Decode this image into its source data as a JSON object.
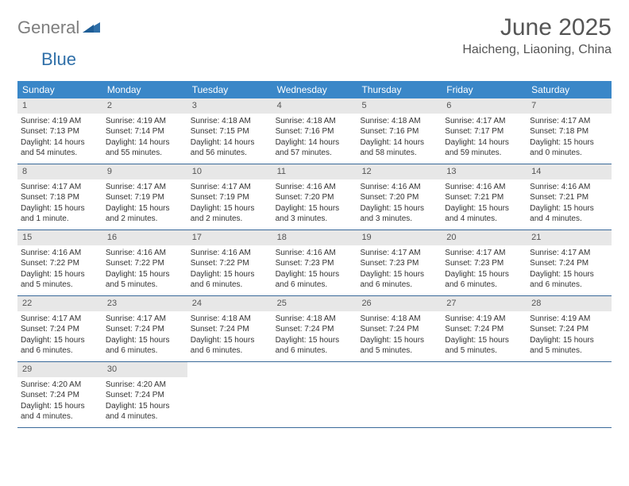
{
  "logo": {
    "gray": "General",
    "blue": "Blue"
  },
  "title": "June 2025",
  "location": "Haicheng, Liaoning, China",
  "colors": {
    "header_bg": "#3a87c8",
    "header_text": "#ffffff",
    "day_num_bg": "#e7e7e7",
    "week_border": "#3a6a9a",
    "logo_gray": "#7e7e7e",
    "logo_blue": "#2f6fa8"
  },
  "dayNames": [
    "Sunday",
    "Monday",
    "Tuesday",
    "Wednesday",
    "Thursday",
    "Friday",
    "Saturday"
  ],
  "weeks": [
    [
      {
        "n": "1",
        "sr": "4:19 AM",
        "ss": "7:13 PM",
        "dl": "14 hours and 54 minutes."
      },
      {
        "n": "2",
        "sr": "4:19 AM",
        "ss": "7:14 PM",
        "dl": "14 hours and 55 minutes."
      },
      {
        "n": "3",
        "sr": "4:18 AM",
        "ss": "7:15 PM",
        "dl": "14 hours and 56 minutes."
      },
      {
        "n": "4",
        "sr": "4:18 AM",
        "ss": "7:16 PM",
        "dl": "14 hours and 57 minutes."
      },
      {
        "n": "5",
        "sr": "4:18 AM",
        "ss": "7:16 PM",
        "dl": "14 hours and 58 minutes."
      },
      {
        "n": "6",
        "sr": "4:17 AM",
        "ss": "7:17 PM",
        "dl": "14 hours and 59 minutes."
      },
      {
        "n": "7",
        "sr": "4:17 AM",
        "ss": "7:18 PM",
        "dl": "15 hours and 0 minutes."
      }
    ],
    [
      {
        "n": "8",
        "sr": "4:17 AM",
        "ss": "7:18 PM",
        "dl": "15 hours and 1 minute."
      },
      {
        "n": "9",
        "sr": "4:17 AM",
        "ss": "7:19 PM",
        "dl": "15 hours and 2 minutes."
      },
      {
        "n": "10",
        "sr": "4:17 AM",
        "ss": "7:19 PM",
        "dl": "15 hours and 2 minutes."
      },
      {
        "n": "11",
        "sr": "4:16 AM",
        "ss": "7:20 PM",
        "dl": "15 hours and 3 minutes."
      },
      {
        "n": "12",
        "sr": "4:16 AM",
        "ss": "7:20 PM",
        "dl": "15 hours and 3 minutes."
      },
      {
        "n": "13",
        "sr": "4:16 AM",
        "ss": "7:21 PM",
        "dl": "15 hours and 4 minutes."
      },
      {
        "n": "14",
        "sr": "4:16 AM",
        "ss": "7:21 PM",
        "dl": "15 hours and 4 minutes."
      }
    ],
    [
      {
        "n": "15",
        "sr": "4:16 AM",
        "ss": "7:22 PM",
        "dl": "15 hours and 5 minutes."
      },
      {
        "n": "16",
        "sr": "4:16 AM",
        "ss": "7:22 PM",
        "dl": "15 hours and 5 minutes."
      },
      {
        "n": "17",
        "sr": "4:16 AM",
        "ss": "7:22 PM",
        "dl": "15 hours and 6 minutes."
      },
      {
        "n": "18",
        "sr": "4:16 AM",
        "ss": "7:23 PM",
        "dl": "15 hours and 6 minutes."
      },
      {
        "n": "19",
        "sr": "4:17 AM",
        "ss": "7:23 PM",
        "dl": "15 hours and 6 minutes."
      },
      {
        "n": "20",
        "sr": "4:17 AM",
        "ss": "7:23 PM",
        "dl": "15 hours and 6 minutes."
      },
      {
        "n": "21",
        "sr": "4:17 AM",
        "ss": "7:24 PM",
        "dl": "15 hours and 6 minutes."
      }
    ],
    [
      {
        "n": "22",
        "sr": "4:17 AM",
        "ss": "7:24 PM",
        "dl": "15 hours and 6 minutes."
      },
      {
        "n": "23",
        "sr": "4:17 AM",
        "ss": "7:24 PM",
        "dl": "15 hours and 6 minutes."
      },
      {
        "n": "24",
        "sr": "4:18 AM",
        "ss": "7:24 PM",
        "dl": "15 hours and 6 minutes."
      },
      {
        "n": "25",
        "sr": "4:18 AM",
        "ss": "7:24 PM",
        "dl": "15 hours and 6 minutes."
      },
      {
        "n": "26",
        "sr": "4:18 AM",
        "ss": "7:24 PM",
        "dl": "15 hours and 5 minutes."
      },
      {
        "n": "27",
        "sr": "4:19 AM",
        "ss": "7:24 PM",
        "dl": "15 hours and 5 minutes."
      },
      {
        "n": "28",
        "sr": "4:19 AM",
        "ss": "7:24 PM",
        "dl": "15 hours and 5 minutes."
      }
    ],
    [
      {
        "n": "29",
        "sr": "4:20 AM",
        "ss": "7:24 PM",
        "dl": "15 hours and 4 minutes."
      },
      {
        "n": "30",
        "sr": "4:20 AM",
        "ss": "7:24 PM",
        "dl": "15 hours and 4 minutes."
      },
      null,
      null,
      null,
      null,
      null
    ]
  ],
  "labels": {
    "sunrise": "Sunrise:",
    "sunset": "Sunset:",
    "daylight": "Daylight:"
  }
}
